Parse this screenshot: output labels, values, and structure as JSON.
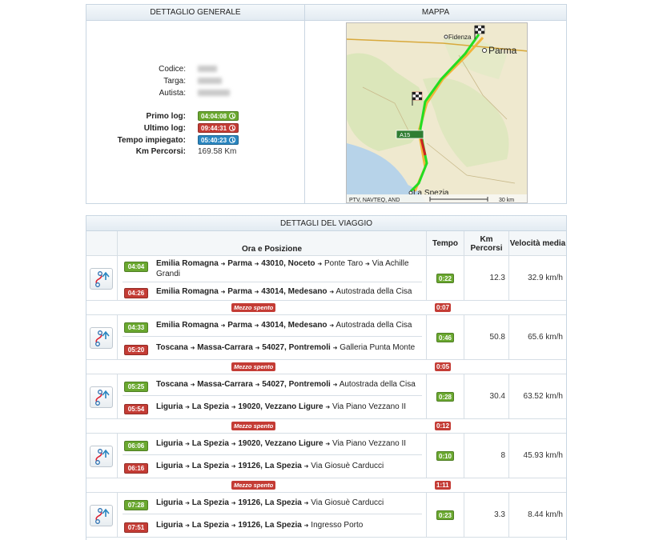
{
  "general": {
    "title": "DETTAGLIO GENERALE",
    "codice_label": "Codice:",
    "targa_label": "Targa:",
    "autista_label": "Autista:",
    "primo_log_label": "Primo log:",
    "primo_log": "04:04:08",
    "ultimo_log_label": "Ultimo log:",
    "ultimo_log": "09:44:31",
    "tempo_label": "Tempo impiegato:",
    "tempo": "05:40:23",
    "km_label": "Km Percorsi:",
    "km": "169.58 Km"
  },
  "map": {
    "title": "MAPPA",
    "city1": "Fidenza",
    "city2": "Parma",
    "city3": "La Spezia",
    "road": "A15",
    "credits": "PTV, NAVTEQ, AND",
    "scale": "30 km"
  },
  "trip": {
    "title": "DETTAGLI DEL VIAGGIO",
    "headers": {
      "ora": "Ora e Posizione",
      "tempo": "Tempo",
      "km": "Km Percorsi",
      "vel": "Velocità media"
    },
    "stop_label": "Mezzo spento",
    "segments": [
      {
        "t1": "04:04",
        "a1_region": "Emilia Romagna",
        "a1_prov": "Parma",
        "a1_cap": "43010, Noceto",
        "a1_place": "Ponte Taro",
        "a1_street": "Via Achille Grandi",
        "t2": "04:26",
        "a2_region": "Emilia Romagna",
        "a2_prov": "Parma",
        "a2_cap": "43014, Medesano",
        "a2_place": "Autostrada della Cisa",
        "dur": "0:22",
        "km": "12.3",
        "vel": "32.9 km/h"
      },
      {
        "t1": "04:33",
        "a1_region": "Emilia Romagna",
        "a1_prov": "Parma",
        "a1_cap": "43014, Medesano",
        "a1_place": "Autostrada della Cisa",
        "t2": "05:20",
        "a2_region": "Toscana",
        "a2_prov": "Massa-Carrara",
        "a2_cap": "54027, Pontremoli",
        "a2_place": "Galleria Punta Monte",
        "dur": "0:46",
        "km": "50.8",
        "vel": "65.6 km/h"
      },
      {
        "t1": "05:25",
        "a1_region": "Toscana",
        "a1_prov": "Massa-Carrara",
        "a1_cap": "54027, Pontremoli",
        "a1_place": "Autostrada della Cisa",
        "t2": "05:54",
        "a2_region": "Liguria",
        "a2_prov": "La Spezia",
        "a2_cap": "19020, Vezzano Ligure",
        "a2_place": "Via Piano Vezzano II",
        "dur": "0:28",
        "km": "30.4",
        "vel": "63.52 km/h"
      },
      {
        "t1": "06:06",
        "a1_region": "Liguria",
        "a1_prov": "La Spezia",
        "a1_cap": "19020, Vezzano Ligure",
        "a1_place": "Via Piano Vezzano II",
        "t2": "06:16",
        "a2_region": "Liguria",
        "a2_prov": "La Spezia",
        "a2_cap": "19126, La Spezia",
        "a2_place": "Via Giosuè Carducci",
        "dur": "0:10",
        "km": "8",
        "vel": "45.93 km/h"
      },
      {
        "t1": "07:28",
        "a1_region": "Liguria",
        "a1_prov": "La Spezia",
        "a1_cap": "19126, La Spezia",
        "a1_place": "Via Giosuè Carducci",
        "t2": "07:51",
        "a2_region": "Liguria",
        "a2_prov": "La Spezia",
        "a2_cap": "19126, La Spezia",
        "a2_place": "Ingresso Porto",
        "dur": "0:23",
        "km": "3.3",
        "vel": "8.44 km/h"
      }
    ],
    "stops": [
      "0:07",
      "0:05",
      "0:12",
      "1:11"
    ]
  },
  "colors": {
    "green": "#6aa82f",
    "red": "#c43c35",
    "blue": "#2a86c0",
    "route": "#22dd22"
  },
  "icons": {
    "clock": "clock-icon",
    "route": "route-icon",
    "flag": "checkered-flag-icon"
  }
}
